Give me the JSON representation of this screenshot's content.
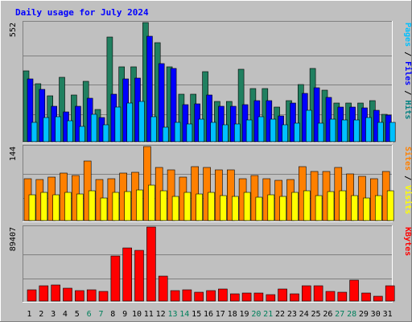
{
  "chart_data": [
    {
      "type": "bar",
      "title": "Daily usage for July 2024",
      "categories": [
        "1",
        "2",
        "3",
        "4",
        "5",
        "6",
        "7",
        "8",
        "9",
        "10",
        "11",
        "12",
        "13",
        "14",
        "15",
        "16",
        "17",
        "18",
        "19",
        "20",
        "21",
        "22",
        "23",
        "24",
        "25",
        "26",
        "27",
        "28",
        "29",
        "30",
        "31"
      ],
      "weekend_days": [
        "6",
        "7",
        "13",
        "14",
        "20",
        "21",
        "27",
        "28"
      ],
      "ymax_label": "552",
      "ylim": [
        0,
        552
      ],
      "right_label_parts": [
        {
          "text": "Pages",
          "color": "#00c0ff"
        },
        {
          "text": " / ",
          "color": "#000000"
        },
        {
          "text": "Files",
          "color": "#0000ff"
        },
        {
          "text": " / ",
          "color": "#000000"
        },
        {
          "text": "Hits",
          "color": "#008080"
        }
      ],
      "series": [
        {
          "key": "hits",
          "color": "#208060",
          "values": [
            330,
            270,
            212,
            300,
            215,
            278,
            150,
            485,
            345,
            345,
            552,
            460,
            345,
            220,
            220,
            325,
            185,
            185,
            335,
            245,
            245,
            160,
            190,
            265,
            340,
            240,
            180,
            180,
            180,
            190,
            128
          ]
        },
        {
          "key": "files",
          "color": "#0000ff",
          "values": [
            292,
            242,
            165,
            138,
            163,
            200,
            112,
            220,
            290,
            295,
            490,
            360,
            340,
            170,
            175,
            215,
            165,
            165,
            170,
            190,
            190,
            120,
            178,
            225,
            250,
            205,
            160,
            160,
            155,
            145,
            122
          ]
        },
        {
          "key": "pages",
          "color": "#00c0ff",
          "values": [
            88,
            112,
            115,
            96,
            72,
            128,
            78,
            162,
            178,
            188,
            115,
            66,
            88,
            82,
            103,
            90,
            78,
            82,
            100,
            115,
            103,
            78,
            86,
            145,
            85,
            103,
            100,
            100,
            113,
            88,
            91
          ]
        }
      ]
    },
    {
      "type": "bar",
      "ymax_label": "144",
      "ylim": [
        0,
        144
      ],
      "right_label_parts": [
        {
          "text": "Sites",
          "color": "#ff8000"
        },
        {
          "text": " / ",
          "color": "#000000"
        },
        {
          "text": "Visits",
          "color": "#ffff00"
        }
      ],
      "series": [
        {
          "key": "visits",
          "color": "#ff8000",
          "values": [
            82,
            80,
            85,
            92,
            88,
            116,
            80,
            82,
            92,
            94,
            144,
            103,
            98,
            84,
            105,
            104,
            98,
            98,
            82,
            88,
            82,
            78,
            80,
            105,
            95,
            95,
            104,
            90,
            86,
            82,
            96
          ]
        },
        {
          "key": "sites",
          "color": "#ffff00",
          "values": [
            50,
            55,
            50,
            55,
            52,
            58,
            44,
            54,
            56,
            60,
            69,
            58,
            47,
            54,
            52,
            55,
            48,
            47,
            55,
            45,
            50,
            47,
            54,
            58,
            48,
            56,
            58,
            48,
            44,
            48,
            58
          ]
        }
      ]
    },
    {
      "type": "bar",
      "ymax_label": "89407",
      "ylim": [
        0,
        89407
      ],
      "right_label_parts": [
        {
          "text": "KBytes",
          "color": "#ff0000"
        }
      ],
      "series": [
        {
          "key": "kbytes",
          "color": "#ff0000",
          "values": [
            13600,
            18000,
            19000,
            16000,
            12700,
            13600,
            11800,
            54500,
            64000,
            61000,
            89407,
            30200,
            12700,
            13600,
            11000,
            12700,
            14500,
            9100,
            10000,
            10000,
            8200,
            14500,
            9100,
            18800,
            18000,
            11800,
            10900,
            25500,
            10000,
            5500,
            18800
          ]
        }
      ]
    }
  ]
}
